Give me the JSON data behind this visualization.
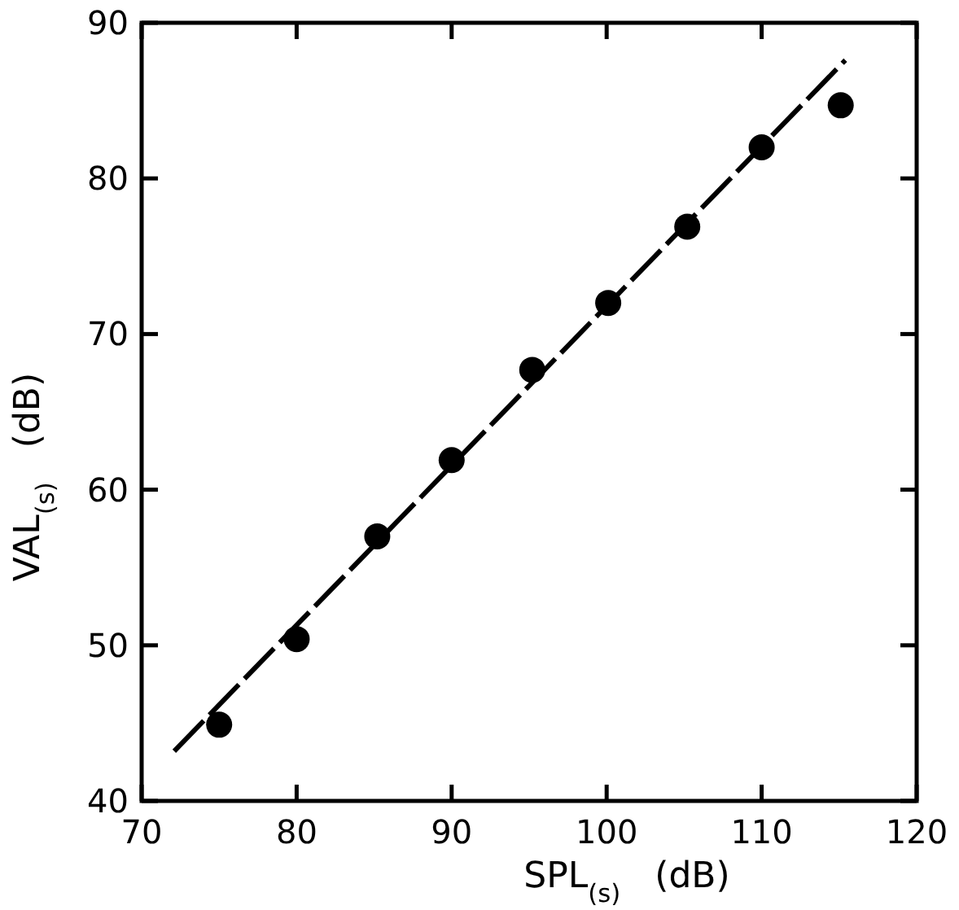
{
  "chart_data": {
    "type": "scatter",
    "xlabel": "SPL$_{(s)}$   (dB)",
    "ylabel": "VAL$_{(s)}$   (dB)",
    "xlim": [
      70,
      120
    ],
    "ylim": [
      40,
      90
    ],
    "xticks": [
      70,
      80,
      90,
      100,
      110,
      120
    ],
    "yticks": [
      40,
      50,
      60,
      70,
      80,
      90
    ],
    "grid": false,
    "marker": "circle",
    "series": [
      {
        "color": "#000000",
        "x": [
          75,
          80,
          85.2,
          90,
          95.2,
          100.1,
          105.2,
          110,
          115.1
        ],
        "values": [
          44.9,
          50.4,
          57,
          61.9,
          67.7,
          72,
          76.9,
          82,
          84.7
        ]
      },
      {
        "type": "line",
        "color": "#000000",
        "line_style": "dashed",
        "marker": "none",
        "x": [
          72.1,
          115.4
        ],
        "values": [
          43.2,
          87.6
        ]
      }
    ]
  }
}
